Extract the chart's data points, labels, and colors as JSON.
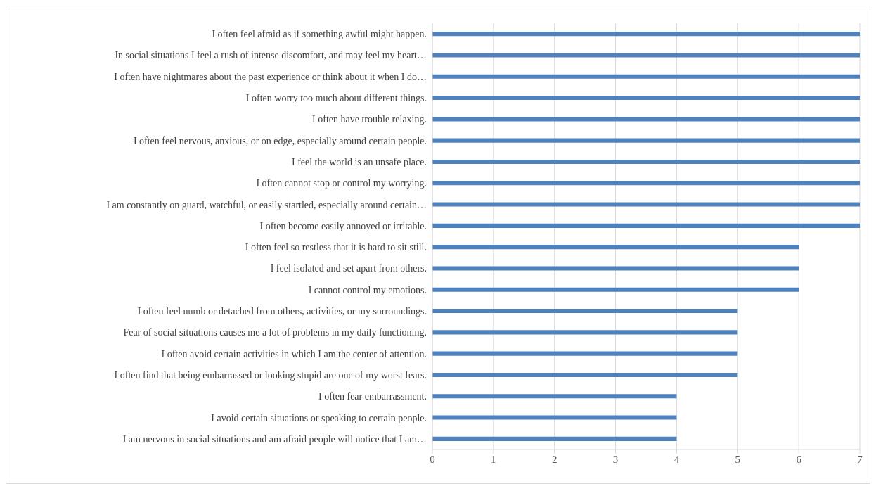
{
  "chart_data": {
    "type": "bar",
    "orientation": "horizontal",
    "categories": [
      "I often feel afraid as if something awful might happen.",
      "In social situations I feel a rush of intense discomfort, and may feel my heart…",
      "I often have nightmares about the past experience or think about it when I do…",
      "I often worry too much about different things.",
      "I often have trouble relaxing.",
      "I often feel nervous, anxious, or on edge, especially around certain people.",
      "I feel the world is an unsafe place.",
      "I often cannot stop or control my worrying.",
      "I am constantly on guard, watchful, or easily startled, especially around certain…",
      "I often become easily annoyed or irritable.",
      "I often feel so restless that it is hard to sit still.",
      "I feel isolated and set apart from others.",
      "I cannot control my emotions.",
      "I often feel numb or detached from others, activities, or my surroundings.",
      "Fear of social situations causes me a lot of problems in my daily functioning.",
      "I often avoid certain activities in which I am the center of attention.",
      "I often find that being embarrassed or looking stupid are one of my worst fears.",
      "I often fear embarrassment.",
      "I avoid certain situations or speaking to certain people.",
      "I am nervous in social situations and am afraid people will notice that I am…"
    ],
    "values": [
      7,
      7,
      7,
      7,
      7,
      7,
      7,
      7,
      7,
      7,
      6,
      6,
      6,
      5,
      5,
      5,
      5,
      4,
      4,
      4
    ],
    "color": "#4f81bd",
    "xlim": [
      0,
      7
    ],
    "xticks": [
      0,
      1,
      2,
      3,
      4,
      5,
      6,
      7
    ],
    "grid": "x"
  }
}
